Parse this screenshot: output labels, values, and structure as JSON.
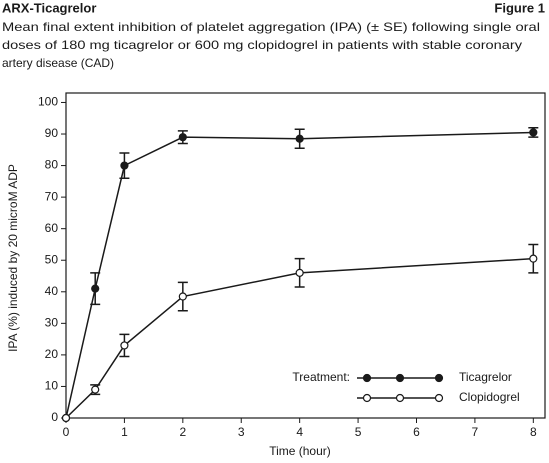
{
  "chart_data": {
    "type": "line",
    "title": "ARX-Ticagrelor",
    "figure_label": "Figure 1",
    "subtitle": [
      "Mean final extent inhibition of platelet aggregation (IPA) (± SE) following single oral",
      "doses of 180 mg ticagrelor or 600 mg clopidogrel in patients with stable coronary",
      "artery disease (CAD)"
    ],
    "x_label": "Time (hour)",
    "y_label": "IPA (%) induced by 20 microM ADP",
    "legend_title": "Treatment:",
    "x": [
      0,
      0.5,
      1,
      2,
      4,
      8
    ],
    "series": [
      {
        "name": "Ticagrelor",
        "color": "#1a1a1a",
        "marker": "filled",
        "values": [
          0,
          41,
          80,
          89,
          88.5,
          90.5
        ],
        "errors": [
          0,
          5,
          4,
          2,
          3,
          1.5
        ]
      },
      {
        "name": "Clopidogrel",
        "color": "#1a1a1a",
        "marker": "open",
        "values": [
          0,
          9,
          23,
          38.5,
          46,
          50.5
        ],
        "errors": [
          0,
          1.5,
          3.5,
          4.5,
          4.5,
          4.5
        ]
      }
    ],
    "xlim": [
      0,
      8.2
    ],
    "ylim": [
      0,
      103
    ],
    "xticks": [
      0,
      1,
      2,
      3,
      4,
      5,
      6,
      7,
      8
    ],
    "yticks": [
      0,
      10,
      20,
      30,
      40,
      50,
      60,
      70,
      80,
      90,
      100
    ]
  }
}
